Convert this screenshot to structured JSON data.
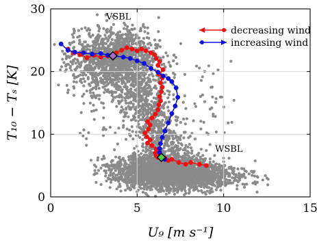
{
  "chart_data": {
    "type": "scatter",
    "xlabel": "U₉ [m s⁻¹]",
    "ylabel": "T₁₀ − Tₛ [K]",
    "xlim": [
      0,
      15
    ],
    "ylim": [
      0,
      30
    ],
    "x_ticks": [
      "0",
      "5",
      "10",
      "15"
    ],
    "y_ticks": [
      "0",
      "10",
      "20",
      "30"
    ],
    "grid": true,
    "legend_position": "top-right",
    "annotations": [
      {
        "text": "VSBL",
        "x": 3.2,
        "y": 28.3
      },
      {
        "text": "WSBL",
        "x": 9.5,
        "y": 7.2
      }
    ],
    "markers": [
      {
        "name": "VSBL centroid",
        "x": 3.6,
        "y": 22.5,
        "color": "#a06fc0",
        "shape": "diamond"
      },
      {
        "name": "WSBL centroid",
        "x": 6.4,
        "y": 6.3,
        "color": "#4dd04d",
        "shape": "diamond"
      }
    ],
    "series": [
      {
        "name": "decreasing wind",
        "color": "#ee1111",
        "x": [
          9.0,
          8.6,
          8.1,
          7.8,
          7.4,
          7.0,
          6.8,
          6.6,
          6.4,
          6.2,
          6.1,
          6.05,
          6.25,
          6.1,
          5.85,
          5.6,
          5.75,
          5.55,
          5.45,
          5.65,
          5.75,
          5.6,
          5.85,
          6.05,
          6.2,
          6.25,
          6.35,
          6.3,
          6.4,
          6.45,
          6.35,
          6.45,
          6.25,
          6.5,
          6.2,
          6.3,
          6.1,
          6.0,
          5.8,
          5.5,
          5.25,
          5.0,
          4.7,
          4.4,
          4.1,
          3.8,
          3.3,
          2.9,
          2.5,
          2.1,
          1.7,
          1.3,
          1.0
        ],
        "y": [
          5.0,
          5.2,
          5.5,
          5.2,
          5.5,
          6.0,
          5.8,
          6.2,
          6.5,
          6.3,
          6.6,
          7.0,
          7.3,
          7.6,
          8.2,
          8.6,
          9.1,
          9.6,
          10.2,
          10.8,
          11.5,
          12.0,
          12.6,
          13.2,
          13.9,
          14.7,
          15.3,
          16.0,
          16.8,
          17.5,
          18.2,
          19.0,
          19.6,
          20.3,
          21.0,
          21.6,
          22.1,
          22.7,
          23.0,
          23.3,
          23.6,
          23.3,
          23.6,
          23.8,
          23.4,
          23.0,
          22.5,
          22.3,
          22.6,
          22.2,
          22.7,
          23.0,
          23.6
        ]
      },
      {
        "name": "increasing wind",
        "color": "#1010dd",
        "x": [
          0.6,
          1.0,
          1.4,
          1.9,
          2.4,
          2.9,
          3.3,
          3.7,
          4.2,
          4.6,
          5.0,
          5.4,
          5.8,
          6.2,
          6.5,
          6.8,
          7.0,
          7.25,
          7.35,
          7.2,
          7.0,
          6.8,
          6.6,
          6.45,
          6.35,
          6.3,
          6.3,
          6.35,
          6.45,
          6.6
        ],
        "y": [
          24.4,
          23.4,
          23.1,
          23.0,
          22.8,
          22.9,
          22.6,
          22.5,
          22.3,
          22.1,
          21.7,
          21.3,
          20.5,
          19.9,
          19.3,
          18.9,
          18.4,
          17.4,
          15.9,
          14.5,
          13.3,
          11.8,
          10.5,
          9.5,
          8.5,
          7.7,
          7.1,
          6.7,
          6.4,
          6.0
        ]
      }
    ]
  }
}
